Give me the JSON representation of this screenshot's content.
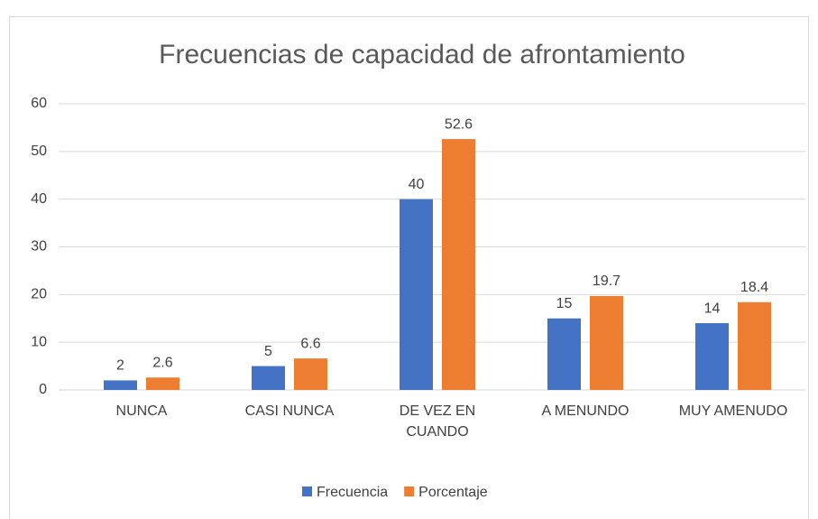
{
  "chart_data": {
    "type": "bar",
    "title": "Frecuencias de capacidad de afrontamiento",
    "categories": [
      "NUNCA",
      "CASI NUNCA",
      "DE VEZ EN\nCUANDO",
      "A MENUNDO",
      "MUY AMENUDO"
    ],
    "series": [
      {
        "name": "Frecuencia",
        "color": "#4472c4",
        "values": [
          2,
          5,
          40,
          15,
          14
        ]
      },
      {
        "name": "Porcentaje",
        "color": "#ed7d31",
        "values": [
          2.6,
          6.6,
          52.6,
          19.7,
          18.4
        ]
      }
    ],
    "ylim": [
      0,
      60
    ],
    "yticks": [
      0,
      10,
      20,
      30,
      40,
      50,
      60
    ],
    "grid": true,
    "legend": "bottom"
  }
}
